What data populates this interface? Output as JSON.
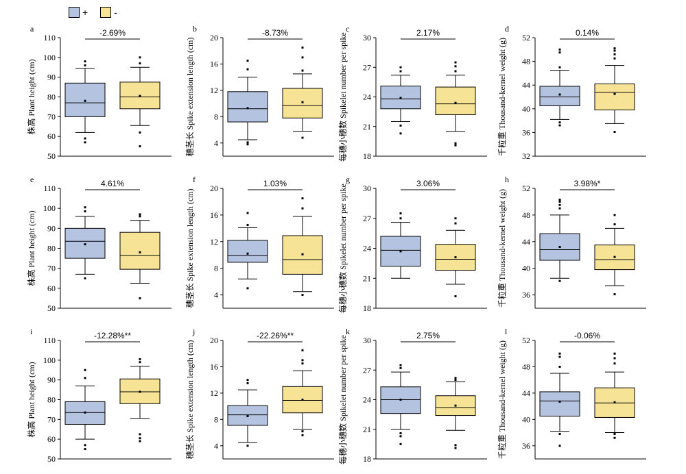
{
  "legend": {
    "items": [
      {
        "label": "+",
        "color": "#b4c3e0"
      },
      {
        "label": "-",
        "color": "#f7e396"
      }
    ]
  },
  "chart_data": [
    {
      "type": "box",
      "panel": "a",
      "ylabel": "株高 Plant height (cm)",
      "ylim": [
        50,
        110
      ],
      "yticks": [
        50,
        60,
        70,
        80,
        90,
        100,
        110
      ],
      "annotation": "-2.69%",
      "boxes": [
        {
          "name": "+",
          "whisker_low": 62,
          "q1": 70,
          "median": 77,
          "q3": 87,
          "whisker_high": 94.5,
          "mean": 78,
          "outliers": [
            57,
            59,
            96,
            98
          ]
        },
        {
          "name": "-",
          "whisker_low": 65.5,
          "q1": 74,
          "median": 80,
          "q3": 87.5,
          "whisker_high": 95,
          "mean": 80.5,
          "outliers": [
            55,
            62,
            97,
            100
          ]
        }
      ]
    },
    {
      "type": "box",
      "panel": "b",
      "ylabel": "穗茎长 Spike extension length (cm)",
      "ylim": [
        2,
        20
      ],
      "yticks": [
        4,
        8,
        12,
        16,
        20
      ],
      "annotation": "-8.73%",
      "boxes": [
        {
          "name": "+",
          "whisker_low": 4.5,
          "q1": 7.2,
          "median": 9.2,
          "q3": 11.8,
          "whisker_high": 14,
          "mean": 9.3,
          "outliers": [
            3.8,
            4.1,
            15.2,
            16.5
          ]
        },
        {
          "name": "-",
          "whisker_low": 5.8,
          "q1": 7.8,
          "median": 9.7,
          "q3": 12.3,
          "whisker_high": 14.5,
          "mean": 10.2,
          "outliers": [
            4.8,
            15,
            17,
            18.5
          ]
        }
      ]
    },
    {
      "type": "box",
      "panel": "c",
      "ylabel": "每穗小穗数 Spikelet number per spike",
      "ylim": [
        18,
        30
      ],
      "yticks": [
        18,
        21,
        24,
        27,
        30
      ],
      "annotation": "2.17%",
      "boxes": [
        {
          "name": "+",
          "whisker_low": 21.5,
          "q1": 22.8,
          "median": 23.8,
          "q3": 25.1,
          "whisker_high": 26.2,
          "mean": 23.9,
          "outliers": [
            20.3,
            21.1,
            26.6,
            27
          ]
        },
        {
          "name": "-",
          "whisker_low": 20.5,
          "q1": 22.2,
          "median": 23.3,
          "q3": 25,
          "whisker_high": 26.2,
          "mean": 23.4,
          "outliers": [
            19.1,
            19.3,
            26.6,
            27.1,
            27.5
          ]
        }
      ]
    },
    {
      "type": "box",
      "panel": "d",
      "ylabel": "千粒重 Thousand-kernel weight (g)",
      "ylim": [
        32,
        52
      ],
      "yticks": [
        32,
        36,
        40,
        44,
        48,
        52
      ],
      "annotation": "0.14%",
      "boxes": [
        {
          "name": "+",
          "whisker_low": 38.2,
          "q1": 40.5,
          "median": 42,
          "q3": 43.8,
          "whisker_high": 46.5,
          "mean": 42.4,
          "outliers": [
            37.2,
            37.7,
            47,
            49.5,
            50
          ]
        },
        {
          "name": "-",
          "whisker_low": 37.5,
          "q1": 39.8,
          "median": 42.8,
          "q3": 44.2,
          "whisker_high": 47.3,
          "mean": 42.5,
          "outliers": [
            36.1,
            48.5,
            49.2,
            49.8,
            50.2
          ]
        }
      ]
    },
    {
      "type": "box",
      "panel": "e",
      "ylabel": "株高 Plant height (cm)",
      "ylim": [
        50,
        110
      ],
      "yticks": [
        50,
        60,
        70,
        80,
        90,
        100,
        110
      ],
      "annotation": "4.61%",
      "boxes": [
        {
          "name": "+",
          "whisker_low": 67,
          "q1": 75,
          "median": 83.5,
          "q3": 90,
          "whisker_high": 96,
          "mean": 82,
          "outliers": [
            65,
            98.5,
            100.5
          ]
        },
        {
          "name": "-",
          "whisker_low": 62.5,
          "q1": 69.5,
          "median": 76.5,
          "q3": 88,
          "whisker_high": 94,
          "mean": 78,
          "outliers": [
            55,
            96,
            97
          ]
        }
      ]
    },
    {
      "type": "box",
      "panel": "f",
      "ylabel": "穗茎长 Spike extension length (cm)",
      "ylim": [
        2,
        20
      ],
      "yticks": [
        4,
        8,
        12,
        16,
        20
      ],
      "annotation": "1.03%",
      "boxes": [
        {
          "name": "+",
          "whisker_low": 6.4,
          "q1": 8.9,
          "median": 9.9,
          "q3": 12.2,
          "whisker_high": 14.1,
          "mean": 10.2,
          "outliers": [
            5,
            14.5,
            16.3
          ]
        },
        {
          "name": "-",
          "whisker_low": 4.5,
          "q1": 7.1,
          "median": 9.3,
          "q3": 12.9,
          "whisker_high": 15.8,
          "mean": 10.1,
          "outliers": [
            4,
            17,
            18.5
          ]
        }
      ]
    },
    {
      "type": "box",
      "panel": "g",
      "ylabel": "每穗小穗数 Spikelet number per spike",
      "ylim": [
        18,
        30
      ],
      "yticks": [
        18,
        21,
        24,
        27,
        30
      ],
      "annotation": "3.06%",
      "boxes": [
        {
          "name": "+",
          "whisker_low": 21,
          "q1": 22.2,
          "median": 23.8,
          "q3": 25.2,
          "whisker_high": 26.6,
          "mean": 23.7,
          "outliers": [
            27,
            27.5
          ]
        },
        {
          "name": "-",
          "whisker_low": 20.4,
          "q1": 21.8,
          "median": 22.9,
          "q3": 24.4,
          "whisker_high": 25.8,
          "mean": 23.1,
          "outliers": [
            19.2,
            26.5,
            27
          ]
        }
      ]
    },
    {
      "type": "box",
      "panel": "h",
      "ylabel": "千粒重 Thousand-kernel weight (g)",
      "ylim": [
        34,
        52
      ],
      "yticks": [
        36,
        40,
        44,
        48,
        52
      ],
      "annotation": "3.98%*",
      "boxes": [
        {
          "name": "+",
          "whisker_low": 38.5,
          "q1": 41.2,
          "median": 42.8,
          "q3": 45.2,
          "whisker_high": 48,
          "mean": 43.2,
          "outliers": [
            38.1,
            49,
            49.5,
            50,
            50.3
          ]
        },
        {
          "name": "-",
          "whisker_low": 37.4,
          "q1": 39.8,
          "median": 41.3,
          "q3": 43.5,
          "whisker_high": 46,
          "mean": 41.7,
          "outliers": [
            36.1,
            46.6,
            48
          ]
        }
      ]
    },
    {
      "type": "box",
      "panel": "i",
      "ylabel": "株高 Plant height (cm)",
      "ylim": [
        50,
        110
      ],
      "yticks": [
        50,
        60,
        70,
        80,
        90,
        100,
        110
      ],
      "annotation": "-12.28%**",
      "boxes": [
        {
          "name": "+",
          "whisker_low": 60,
          "q1": 67.5,
          "median": 73.5,
          "q3": 79,
          "whisker_high": 87,
          "mean": 73.5,
          "outliers": [
            55,
            57,
            91,
            95
          ]
        },
        {
          "name": "-",
          "whisker_low": 70.5,
          "q1": 78,
          "median": 84,
          "q3": 90.5,
          "whisker_high": 97,
          "mean": 84,
          "outliers": [
            59,
            60.5,
            62.5,
            99,
            100.5
          ]
        }
      ]
    },
    {
      "type": "box",
      "panel": "j",
      "ylabel": "穗茎长 Spike extension length (cm)",
      "ylim": [
        2,
        20
      ],
      "yticks": [
        4,
        8,
        12,
        16,
        20
      ],
      "annotation": "-22.26%**",
      "boxes": [
        {
          "name": "+",
          "whisker_low": 4.5,
          "q1": 7.1,
          "median": 8.7,
          "q3": 10.1,
          "whisker_high": 12.5,
          "mean": 8.5,
          "outliers": [
            4,
            13.5,
            14
          ]
        },
        {
          "name": "-",
          "whisker_low": 6.5,
          "q1": 9,
          "median": 10.9,
          "q3": 13,
          "whisker_high": 15.4,
          "mean": 11,
          "outliers": [
            5.6,
            6.2,
            16.5,
            17,
            18.5
          ]
        }
      ]
    },
    {
      "type": "box",
      "panel": "k",
      "ylabel": "每穗小穗数 Spikelet number per spike",
      "ylim": [
        18,
        30
      ],
      "yticks": [
        18,
        21,
        24,
        27,
        30
      ],
      "annotation": "2.75%",
      "boxes": [
        {
          "name": "+",
          "whisker_low": 21,
          "q1": 22.6,
          "median": 24,
          "q3": 25.3,
          "whisker_high": 26.8,
          "mean": 24,
          "outliers": [
            19.5,
            20.3,
            20.6,
            27.2,
            27.5
          ]
        },
        {
          "name": "-",
          "whisker_low": 20.9,
          "q1": 22.4,
          "median": 23.2,
          "q3": 24.4,
          "whisker_high": 25.8,
          "mean": 23.4,
          "outliers": [
            19.1,
            19.4,
            26,
            26.2
          ]
        }
      ]
    },
    {
      "type": "box",
      "panel": "l",
      "ylabel": "千粒重 Thousand-kernel weight (g)",
      "ylim": [
        34,
        52
      ],
      "yticks": [
        36,
        40,
        44,
        48,
        52
      ],
      "annotation": "-0.06%",
      "boxes": [
        {
          "name": "+",
          "whisker_low": 38.2,
          "q1": 40.5,
          "median": 42.8,
          "q3": 44.2,
          "whisker_high": 47,
          "mean": 42.7,
          "outliers": [
            36,
            37.8,
            48,
            49.5,
            50
          ]
        },
        {
          "name": "-",
          "whisker_low": 38,
          "q1": 40.3,
          "median": 42.5,
          "q3": 44.8,
          "whisker_high": 47.2,
          "mean": 42.6,
          "outliers": [
            37.2,
            37.8,
            48.5,
            49.3,
            50
          ]
        }
      ]
    }
  ]
}
